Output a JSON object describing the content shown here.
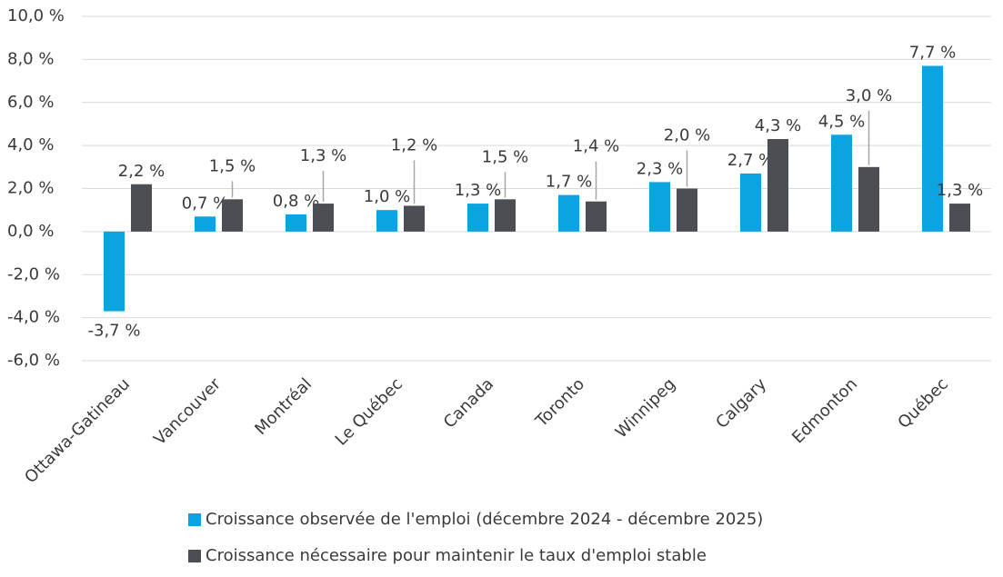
{
  "chart_data": {
    "type": "bar",
    "categories": [
      "Ottawa-Gatineau",
      "Vancouver",
      "Montréal",
      "Le Québec",
      "Canada",
      "Toronto",
      "Winnipeg",
      "Calgary",
      "Edmonton",
      "Québec"
    ],
    "series": [
      {
        "name": "Croissance observée de l'emploi (décembre 2024 - décembre 2025)",
        "color": "#0ba3e0",
        "values": [
          -3.7,
          0.7,
          0.8,
          1.0,
          1.3,
          1.7,
          2.3,
          2.7,
          4.5,
          7.7
        ],
        "value_labels": [
          "-3,7 %",
          "0,7 %",
          "0,8 %",
          "1,0 %",
          "1,3 %",
          "1,7 %",
          "2,3 %",
          "2,7 %",
          "4,5 %",
          "7,7 %"
        ]
      },
      {
        "name": "Croissance nécessaire pour maintenir le taux d'emploi stable",
        "color": "#4b4f54",
        "values": [
          2.2,
          1.5,
          1.3,
          1.2,
          1.5,
          1.4,
          2.0,
          4.3,
          3.0,
          1.3
        ],
        "value_labels": [
          "2,2 %",
          "1,5 %",
          "1,3 %",
          "1,2 %",
          "1,5 %",
          "1,4 %",
          "2,0 %",
          "4,3 %",
          "3,0 %",
          "1,3 %"
        ]
      }
    ],
    "ylim": [
      -6,
      10
    ],
    "yticks": [
      {
        "value": -6,
        "label": "-6,0 %"
      },
      {
        "value": -4,
        "label": "-4,0 %"
      },
      {
        "value": -2,
        "label": "-2,0 %"
      },
      {
        "value": 0,
        "label": "0,0 %"
      },
      {
        "value": 2,
        "label": "2,0 %"
      },
      {
        "value": 4,
        "label": "4,0 %"
      },
      {
        "value": 6,
        "label": "6,0 %"
      },
      {
        "value": 8,
        "label": "8,0 %"
      },
      {
        "value": 10,
        "label": "10,0 %"
      }
    ],
    "grid": true
  }
}
